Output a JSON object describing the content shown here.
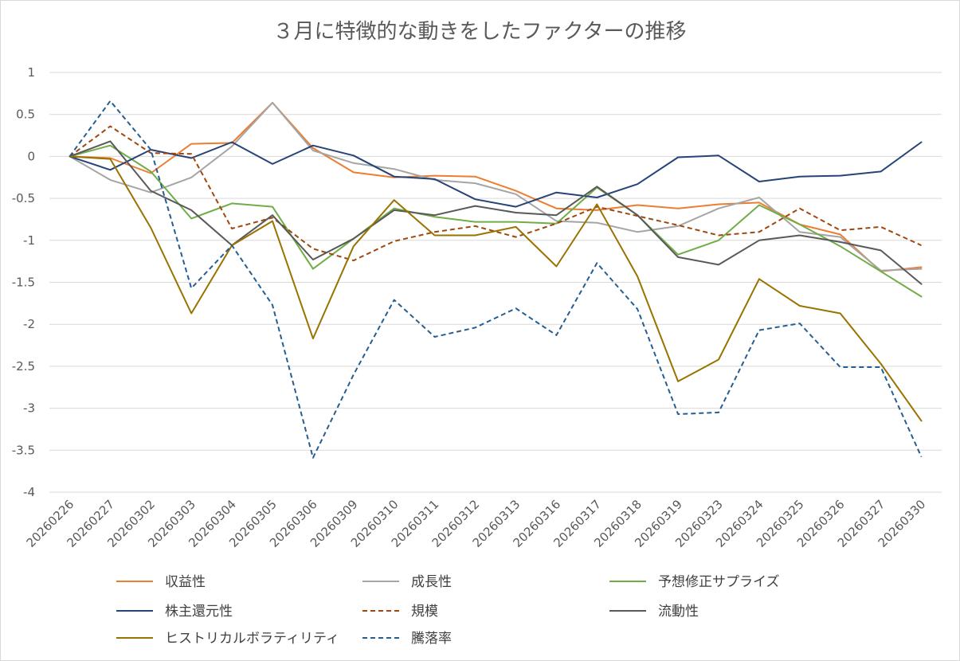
{
  "chart_data": {
    "type": "line",
    "title": "３月に特徴的な動きをしたファクターの推移",
    "xlabel": "",
    "ylabel": "",
    "ylim": [
      -4,
      1
    ],
    "yticks": [
      1,
      0.5,
      0,
      -0.5,
      -1,
      -1.5,
      -2,
      -2.5,
      -3,
      -3.5,
      -4
    ],
    "ytick_labels": [
      "1",
      "0.5",
      "0",
      "-0.5",
      "-1",
      "-1.5",
      "-2",
      "-2.5",
      "-3",
      "-3.5",
      "-4"
    ],
    "grid": true,
    "legend_position": "bottom",
    "categories": [
      "20260226",
      "20260227",
      "20260302",
      "20260303",
      "20260304",
      "20260305",
      "20260306",
      "20260309",
      "20260310",
      "20260311",
      "20260312",
      "20260313",
      "20260316",
      "20260317",
      "20260318",
      "20260319",
      "20260323",
      "20260324",
      "20260325",
      "20260326",
      "20260327",
      "20260330"
    ],
    "series": [
      {
        "name": "収益性",
        "color": "#ED7D31",
        "dash": "solid",
        "values": [
          0,
          -0.02,
          -0.2,
          0.15,
          0.16,
          0.64,
          0.1,
          -0.19,
          -0.25,
          -0.23,
          -0.24,
          -0.41,
          -0.62,
          -0.64,
          -0.58,
          -0.62,
          -0.57,
          -0.55,
          -0.81,
          -0.93,
          -1.37,
          -1.32
        ]
      },
      {
        "name": "成長性",
        "color": "#A5A5A5",
        "dash": "solid",
        "values": [
          0,
          -0.28,
          -0.43,
          -0.25,
          0.12,
          0.64,
          0.07,
          -0.08,
          -0.15,
          -0.28,
          -0.32,
          -0.45,
          -0.77,
          -0.79,
          -0.9,
          -0.83,
          -0.62,
          -0.49,
          -0.9,
          -0.96,
          -1.36,
          -1.34
        ]
      },
      {
        "name": "予想修正サプライズ",
        "color": "#70AD47",
        "dash": "solid",
        "values": [
          0,
          0.13,
          -0.18,
          -0.74,
          -0.56,
          -0.6,
          -1.34,
          -0.98,
          -0.62,
          -0.72,
          -0.78,
          -0.78,
          -0.8,
          -0.37,
          -0.7,
          -1.17,
          -1.0,
          -0.58,
          -0.81,
          -1.07,
          -1.37,
          -1.67
        ]
      },
      {
        "name": "株主還元性",
        "color": "#264478",
        "dash": "solid",
        "values": [
          0,
          -0.16,
          0.08,
          -0.02,
          0.17,
          -0.09,
          0.13,
          0.01,
          -0.24,
          -0.27,
          -0.51,
          -0.6,
          -0.43,
          -0.49,
          -0.33,
          -0.01,
          0.01,
          -0.3,
          -0.24,
          -0.23,
          -0.18,
          0.17
        ]
      },
      {
        "name": "規模",
        "color": "#9E480E",
        "dash": "dash",
        "values": [
          0,
          0.36,
          0.04,
          0.03,
          -0.86,
          -0.73,
          -1.1,
          -1.24,
          -1.01,
          -0.9,
          -0.83,
          -0.96,
          -0.8,
          -0.6,
          -0.71,
          -0.82,
          -0.94,
          -0.9,
          -0.62,
          -0.88,
          -0.84,
          -1.06
        ]
      },
      {
        "name": "流動性",
        "color": "#595959",
        "dash": "solid",
        "values": [
          0,
          0.18,
          -0.41,
          -0.64,
          -1.06,
          -0.7,
          -1.23,
          -0.98,
          -0.64,
          -0.7,
          -0.59,
          -0.67,
          -0.7,
          -0.36,
          -0.7,
          -1.2,
          -1.29,
          -1.0,
          -0.94,
          -1.02,
          -1.12,
          -1.52
        ]
      },
      {
        "name": "ヒストリカルボラティリティ",
        "color": "#997300",
        "dash": "solid",
        "values": [
          0,
          -0.03,
          -0.85,
          -1.87,
          -1.06,
          -0.77,
          -2.17,
          -1.07,
          -0.52,
          -0.94,
          -0.94,
          -0.84,
          -1.31,
          -0.57,
          -1.43,
          -2.68,
          -2.42,
          -1.46,
          -1.78,
          -1.87,
          -2.47,
          -3.15
        ]
      },
      {
        "name": "騰落率",
        "color": "#255E91",
        "dash": "dash",
        "values": [
          0,
          0.66,
          0.08,
          -1.57,
          -1.06,
          -1.77,
          -3.59,
          -2.6,
          -1.71,
          -2.15,
          -2.04,
          -1.81,
          -2.13,
          -1.27,
          -1.82,
          -3.07,
          -3.05,
          -2.07,
          -1.99,
          -2.51,
          -2.51,
          -3.58
        ]
      }
    ]
  }
}
